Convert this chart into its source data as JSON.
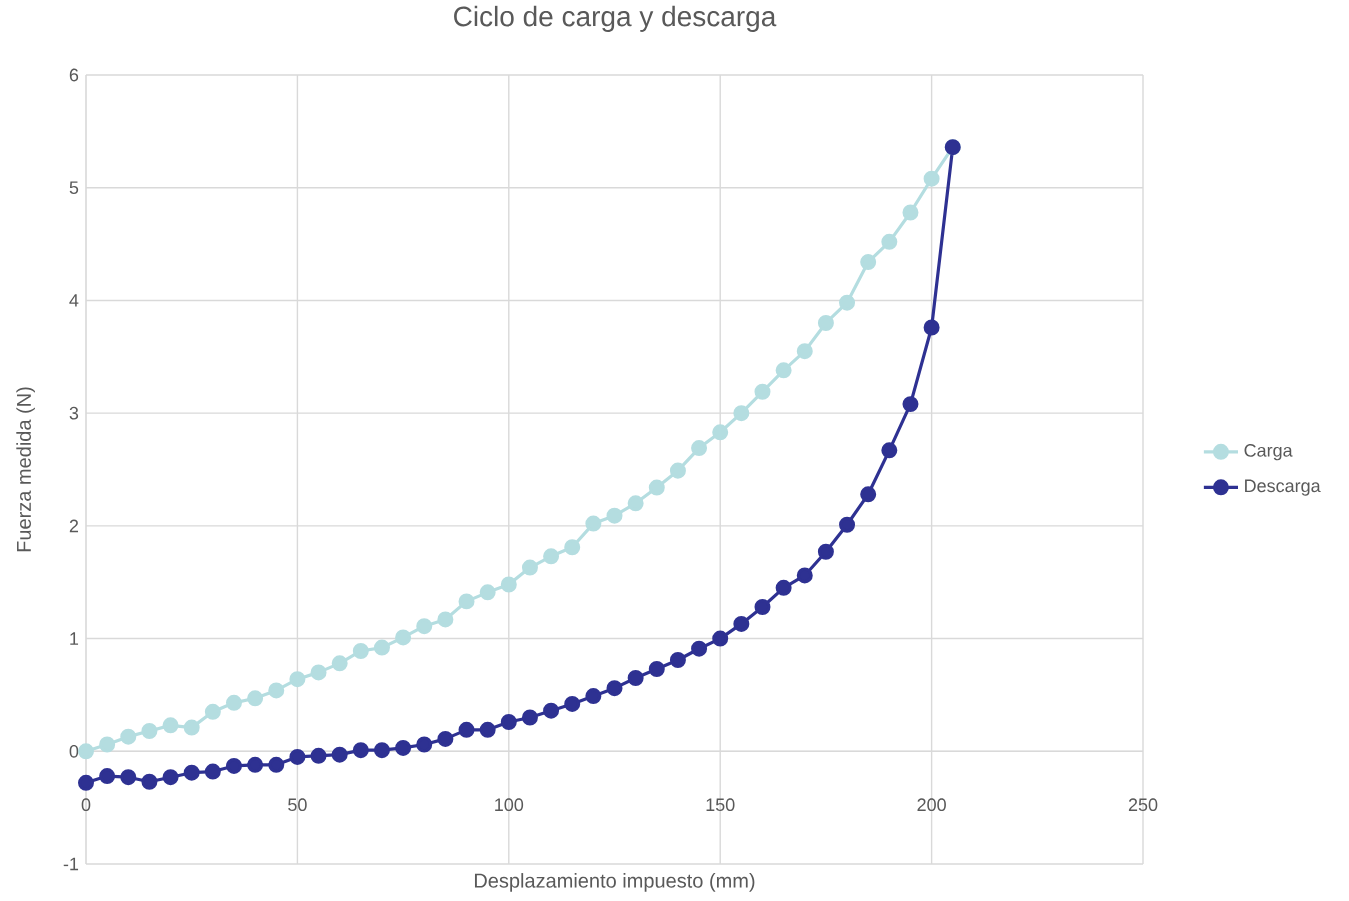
{
  "chart_data": {
    "type": "line",
    "title": "Ciclo de carga y descarga",
    "xlabel": "Desplazamiento impuesto (mm)",
    "ylabel": "Fuerza medida (N)",
    "x": [
      0,
      5,
      10,
      15,
      20,
      25,
      30,
      35,
      40,
      45,
      50,
      55,
      60,
      65,
      70,
      75,
      80,
      85,
      90,
      95,
      100,
      105,
      110,
      115,
      120,
      125,
      130,
      135,
      140,
      145,
      150,
      155,
      160,
      165,
      170,
      175,
      180,
      185,
      190,
      195,
      200,
      205
    ],
    "series": [
      {
        "name": "Carga",
        "color": "#b4dde0",
        "values": [
          0,
          0.06,
          0.13,
          0.18,
          0.23,
          0.21,
          0.35,
          0.43,
          0.47,
          0.54,
          0.64,
          0.7,
          0.78,
          0.89,
          0.92,
          1.01,
          1.11,
          1.17,
          1.33,
          1.41,
          1.48,
          1.63,
          1.73,
          1.81,
          2.02,
          2.09,
          2.2,
          2.34,
          2.49,
          2.69,
          2.83,
          3.0,
          3.19,
          3.38,
          3.55,
          3.8,
          3.98,
          4.34,
          4.52,
          4.78,
          5.08,
          5.36
        ]
      },
      {
        "name": "Descarga",
        "color": "#2e3192",
        "values": [
          -0.28,
          -0.22,
          -0.23,
          -0.27,
          -0.23,
          -0.19,
          -0.18,
          -0.13,
          -0.12,
          -0.12,
          -0.05,
          -0.04,
          -0.03,
          0.01,
          0.01,
          0.03,
          0.06,
          0.11,
          0.19,
          0.19,
          0.26,
          0.3,
          0.36,
          0.42,
          0.49,
          0.56,
          0.65,
          0.73,
          0.81,
          0.91,
          1.0,
          1.13,
          1.28,
          1.45,
          1.56,
          1.77,
          2.01,
          2.28,
          2.67,
          3.08,
          3.76,
          5.36
        ]
      }
    ],
    "xlim": [
      0,
      250
    ],
    "xticks": [
      0,
      50,
      100,
      150,
      200,
      250
    ],
    "ylim": [
      -1,
      6
    ],
    "yticks": [
      -1,
      0,
      1,
      2,
      3,
      4,
      5,
      6
    ],
    "grid": true,
    "legend": "right",
    "marker": "circle",
    "line_style": "solid"
  }
}
